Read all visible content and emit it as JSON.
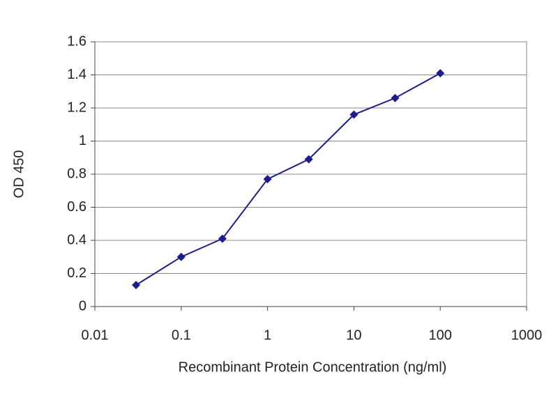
{
  "chart_data": {
    "type": "line",
    "x_label": "Recombinant Protein Concentration (ng/ml)",
    "y_label": "OD 450",
    "x": [
      0.03,
      0.1,
      0.3,
      1,
      3,
      10,
      30,
      100
    ],
    "values": [
      0.13,
      0.3,
      0.41,
      0.77,
      0.89,
      1.16,
      1.26,
      1.41
    ],
    "color": "#1c1c8c",
    "xlim": [
      0.01,
      1000
    ],
    "xticks": [
      0.01,
      0.1,
      1,
      10,
      100,
      1000
    ],
    "log_x": true,
    "ylim": [
      0,
      1.6
    ],
    "yticks": [
      0,
      0.2,
      0.4,
      0.6,
      0.8,
      1,
      1.2,
      1.4,
      1.6
    ],
    "grid": true
  }
}
